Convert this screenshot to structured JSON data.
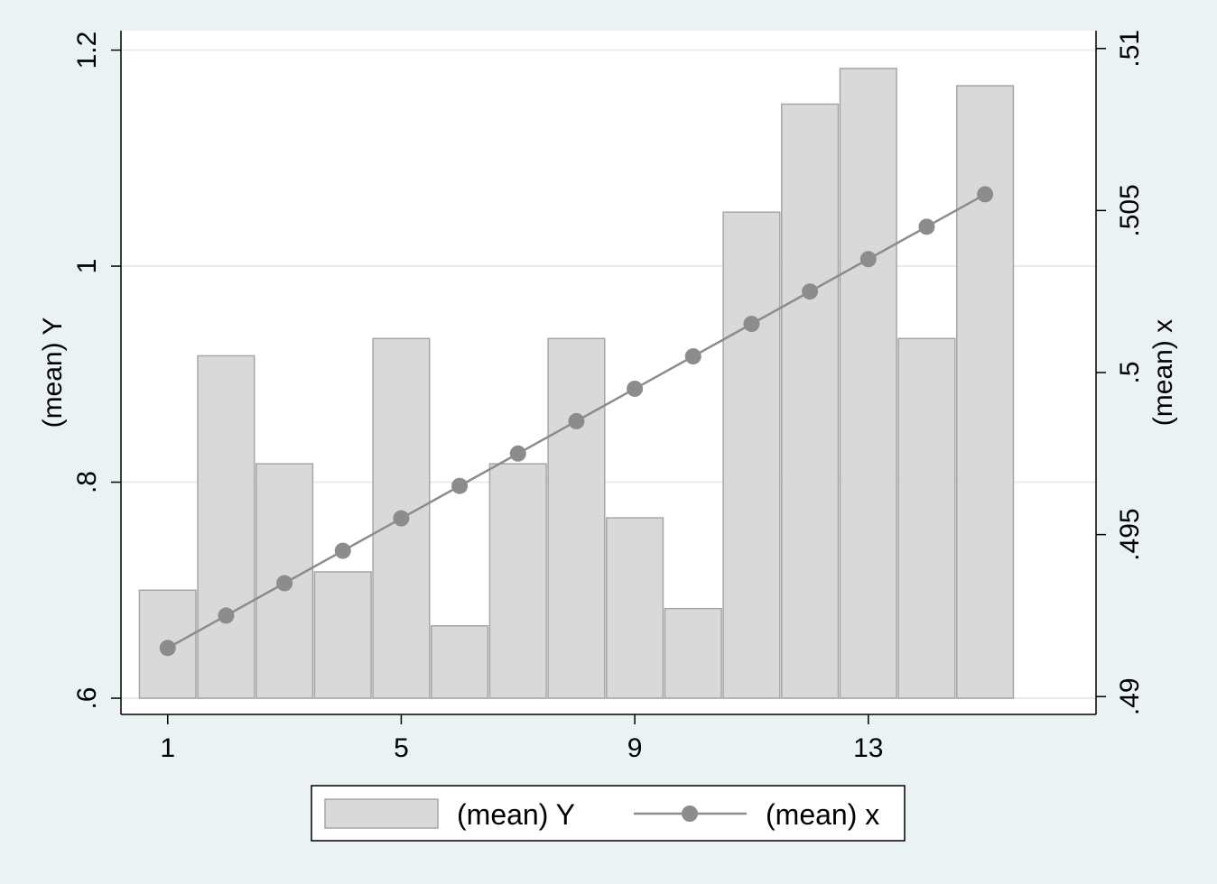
{
  "chart_data": {
    "type": "bar",
    "x": [
      1,
      2,
      3,
      4,
      5,
      6,
      7,
      8,
      9,
      10,
      11,
      12,
      13,
      14,
      15
    ],
    "x_ticks": [
      "1",
      "5",
      "9",
      "13"
    ],
    "x_tick_values": [
      1,
      5,
      9,
      13
    ],
    "xlim": [
      0.2,
      16.9
    ],
    "series": [
      {
        "name": "(mean) Y",
        "type": "bar",
        "axis": "left",
        "values": [
          0.7,
          0.917,
          0.817,
          0.717,
          0.933,
          0.667,
          0.817,
          0.933,
          0.767,
          0.683,
          1.05,
          1.15,
          1.183,
          0.933,
          1.167
        ]
      },
      {
        "name": "(mean) x",
        "type": "line",
        "axis": "right",
        "values": [
          0.4915,
          0.4925,
          0.4935,
          0.4945,
          0.4955,
          0.4965,
          0.4975,
          0.4985,
          0.4995,
          0.5005,
          0.5015,
          0.5025,
          0.5035,
          0.5045,
          0.5055
        ]
      }
    ],
    "y_left": {
      "label": "(mean) Y",
      "ylim": [
        0.585,
        1.218
      ],
      "ticks": [
        ".6",
        ".8",
        "1",
        "1.2"
      ],
      "tick_values": [
        0.6,
        0.8,
        1.0,
        1.2
      ]
    },
    "y_right": {
      "label": "(mean) x",
      "ylim": [
        0.48945,
        0.51055
      ],
      "ticks": [
        ".49",
        ".495",
        ".5",
        ".505",
        ".51"
      ],
      "tick_values": [
        0.49,
        0.495,
        0.5,
        0.505,
        0.51
      ]
    },
    "grid": true,
    "legend_position": "bottom",
    "colors": {
      "bar_fill": "#d9d9d9",
      "bar_stroke": "#a6a6a6",
      "line": "#8c8c8c",
      "marker": "#8c8c8c",
      "grid": "#e4eeee",
      "background": "#eaf2f3",
      "plot_background": "#ffffff"
    }
  }
}
